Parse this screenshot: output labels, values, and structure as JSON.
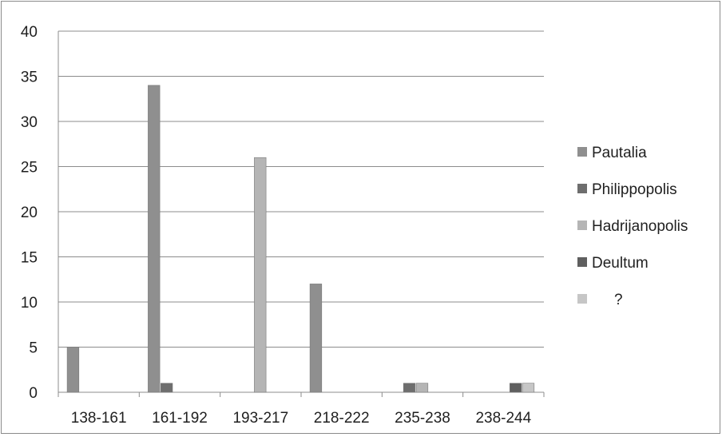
{
  "chart_data": {
    "type": "bar",
    "title": "",
    "xlabel": "",
    "ylabel": "",
    "categories": [
      "138-161",
      "161-192",
      "193-217",
      "218-222",
      "235-238",
      "238-244"
    ],
    "ylim": [
      0,
      40
    ],
    "yticks": [
      0,
      5,
      10,
      15,
      20,
      25,
      30,
      35,
      40
    ],
    "grid": true,
    "legend_position": "right",
    "series": [
      {
        "name": "Pautalia",
        "color": "#8f8f8f",
        "values": [
          5,
          34,
          0,
          12,
          0,
          0
        ]
      },
      {
        "name": "Philippopolis",
        "color": "#6e6e6e",
        "values": [
          0,
          1,
          0,
          0,
          1,
          0
        ]
      },
      {
        "name": "Hadrijanopolis",
        "color": "#b5b5b5",
        "values": [
          0,
          0,
          26,
          0,
          1,
          0
        ]
      },
      {
        "name": "Deultum",
        "color": "#5f5f5f",
        "values": [
          0,
          0,
          0,
          0,
          0,
          1
        ]
      },
      {
        "name": "?",
        "color": "#c6c6c6",
        "values": [
          0,
          0,
          0,
          0,
          0,
          1
        ]
      }
    ]
  }
}
